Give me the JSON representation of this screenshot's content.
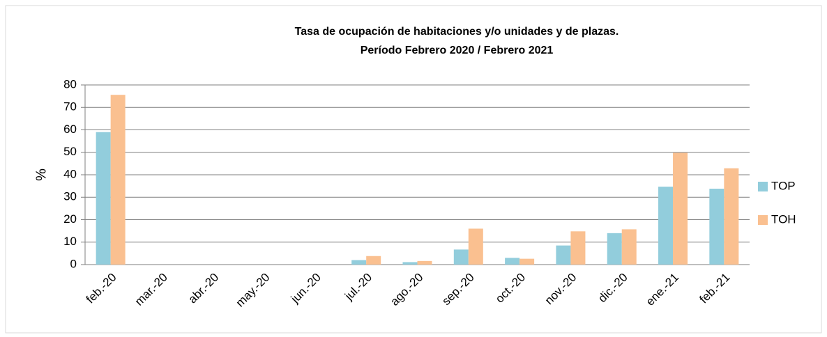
{
  "chart_data": {
    "type": "bar",
    "title": "Tasa de ocupación de habitaciones y/o unidades y de plazas.",
    "subtitle": "Período Febrero 2020 / Febrero 2021",
    "ylabel": "%",
    "categories": [
      "feb.-20",
      "mar.-20",
      "abr.-20",
      "may.-20",
      "jun.-20",
      "jul.-20",
      "ago.-20",
      "sep.-20",
      "oct.-20",
      "nov.-20",
      "dic.-20",
      "ene.-21",
      "feb.-21"
    ],
    "series": [
      {
        "name": "TOP",
        "color": "#92cddc",
        "values": [
          59,
          0,
          0,
          0,
          0,
          2,
          1.1,
          6.7,
          3,
          8.5,
          14,
          34.7,
          33.8
        ]
      },
      {
        "name": "TOH",
        "color": "#fac090",
        "values": [
          75.6,
          0,
          0,
          0,
          0,
          3.8,
          1.6,
          16,
          2.6,
          14.8,
          15.7,
          49.8,
          42.9
        ]
      }
    ],
    "ylim": [
      0,
      80
    ],
    "yticks": [
      0,
      10,
      20,
      30,
      40,
      50,
      60,
      70,
      80
    ],
    "grid": true,
    "legend": "right"
  }
}
